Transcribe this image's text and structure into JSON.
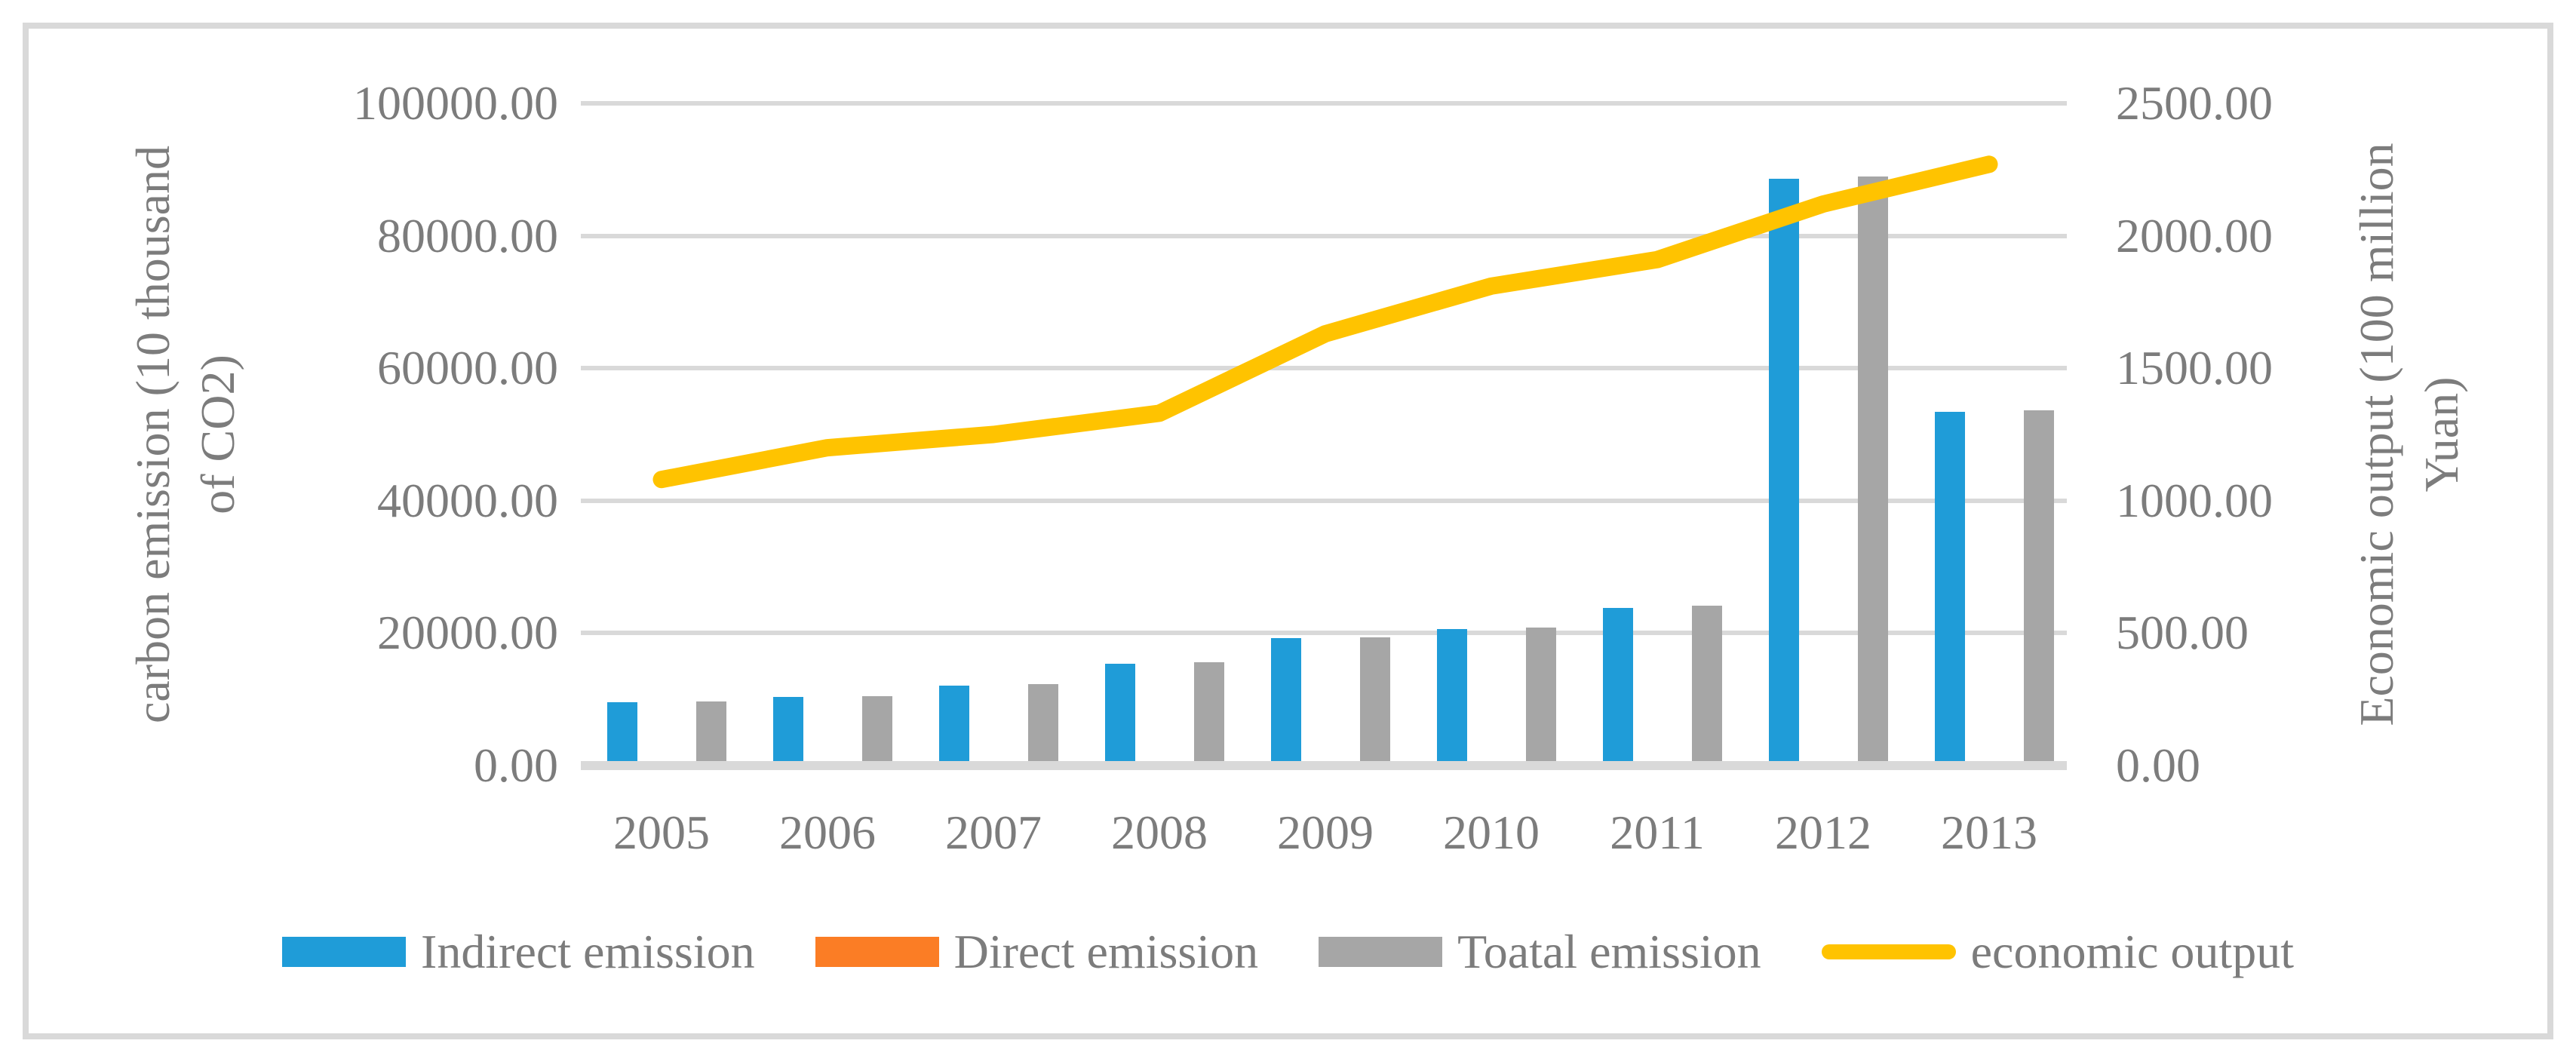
{
  "figure": {
    "background": "#FFFFFF",
    "border_color": "#D9D9D9",
    "gridline_color": "#D9D9D9",
    "text_color": "#7C7C7C"
  },
  "chart_data": {
    "type": "combo-bar-line",
    "categories": [
      "2005",
      "2006",
      "2007",
      "2008",
      "2009",
      "2010",
      "2011",
      "2012",
      "2013"
    ],
    "bar_series": [
      {
        "name": "Indirect emission",
        "color": "#1F9CD8",
        "axis": "left",
        "values": [
          9600,
          10400,
          12100,
          15400,
          19200,
          20600,
          23800,
          88600,
          53400
        ]
      },
      {
        "name": "Direct emission",
        "color": "#FB7D25",
        "axis": "left",
        "values": [
          100,
          100,
          150,
          200,
          200,
          200,
          300,
          300,
          300
        ]
      },
      {
        "name": "Toatal emission",
        "color": "#A6A6A6",
        "axis": "left",
        "values": [
          9700,
          10500,
          12250,
          15600,
          19400,
          20800,
          24100,
          88900,
          53700
        ]
      }
    ],
    "line_series": [
      {
        "name": "economic output",
        "color": "#FFC300",
        "axis": "right",
        "values": [
          1080,
          1200,
          1250,
          1330,
          1630,
          1810,
          1910,
          2120,
          2270
        ]
      }
    ],
    "left_axis": {
      "title": "carbon emission (10 thousand of CO2)",
      "title_lines": [
        "carbon emission (10 thousand",
        "of CO2)"
      ],
      "min": 0,
      "max": 100000,
      "tick_step": 20000,
      "ticks": [
        "0.00",
        "20000.00",
        "40000.00",
        "60000.00",
        "80000.00",
        "100000.00"
      ]
    },
    "right_axis": {
      "title": "Economic output (100 million Yuan)",
      "title_lines": [
        "Economic output (100 million",
        "Yuan)"
      ],
      "min": 0,
      "max": 2500,
      "tick_step": 500,
      "ticks": [
        "0.00",
        "500.00",
        "1000.00",
        "1500.00",
        "2000.00",
        "2500.00"
      ]
    },
    "grid": true,
    "legend_position": "bottom"
  },
  "legend": {
    "items": [
      {
        "label": "Indirect emission",
        "swatch": "rect",
        "color": "#1F9CD8"
      },
      {
        "label": "Direct emission",
        "swatch": "rect",
        "color": "#FB7D25"
      },
      {
        "label": "Toatal emission",
        "swatch": "rect",
        "color": "#A6A6A6"
      },
      {
        "label": "economic output",
        "swatch": "line",
        "color": "#FFC300"
      }
    ]
  }
}
